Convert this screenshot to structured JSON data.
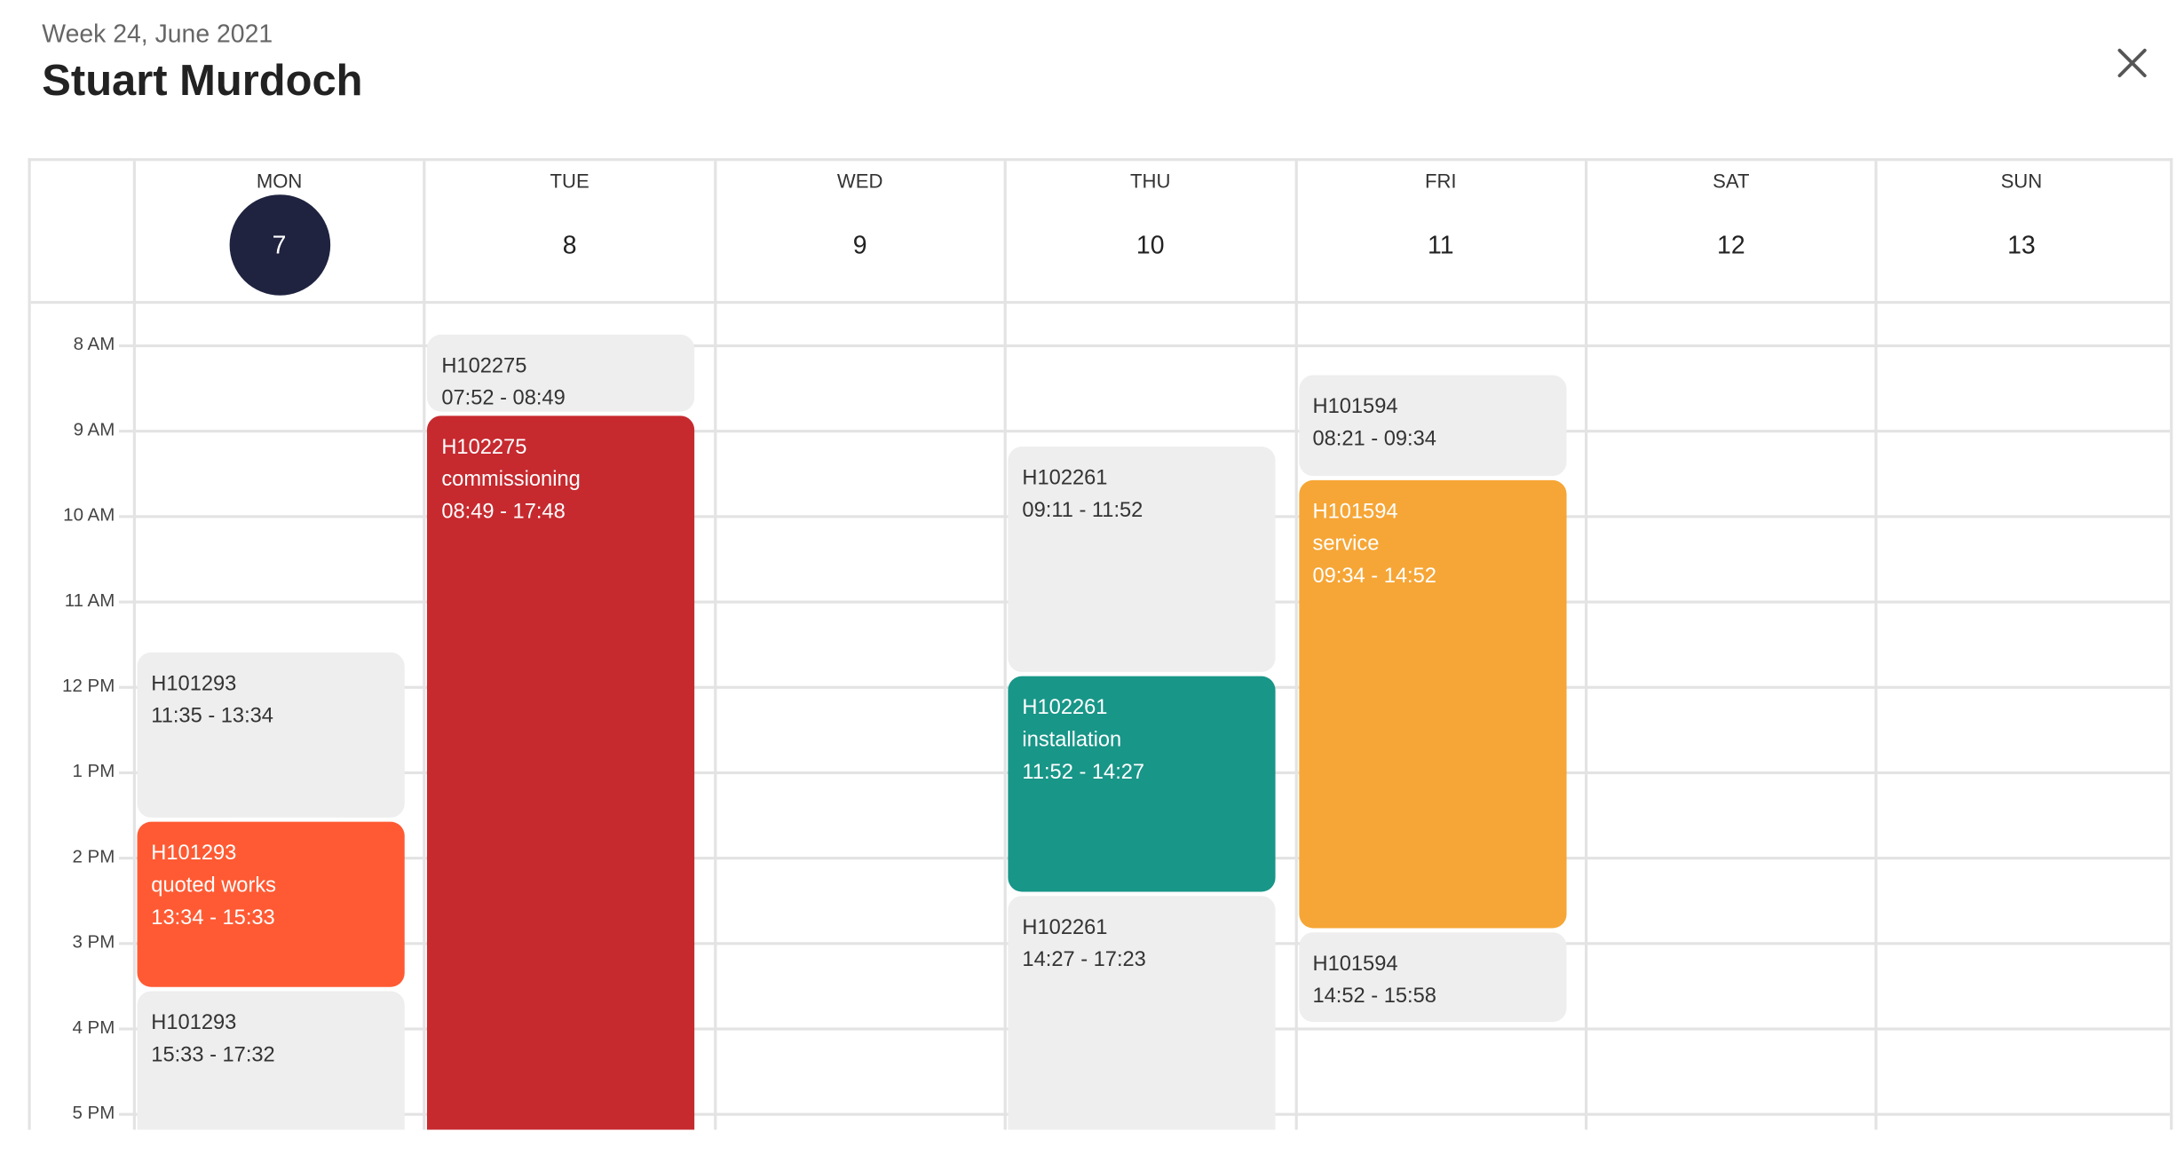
{
  "header": {
    "subtitle": "Week 24, June 2021",
    "title": "Stuart Murdoch",
    "close_icon": "close-icon"
  },
  "days": [
    {
      "name": "MON",
      "num": "7",
      "today": true
    },
    {
      "name": "TUE",
      "num": "8"
    },
    {
      "name": "WED",
      "num": "9"
    },
    {
      "name": "THU",
      "num": "10"
    },
    {
      "name": "FRI",
      "num": "11"
    },
    {
      "name": "SAT",
      "num": "12"
    },
    {
      "name": "SUN",
      "num": "13"
    }
  ],
  "hours": [
    "8 AM",
    "9 AM",
    "10 AM",
    "11 AM",
    "12 PM",
    "1 PM",
    "2 PM",
    "3 PM",
    "4 PM",
    "5 PM"
  ],
  "colors": {
    "today": "#1f2340",
    "grey": "#eeeeee",
    "red": "#c62a2f",
    "coral": "#ff5a33",
    "teal": "#189688",
    "orange": "#f6a636"
  },
  "events": [
    {
      "day": 0,
      "id": "H101293",
      "label": "",
      "start": "11:35",
      "end": "13:34",
      "time": "11:35 - 13:34",
      "color": "grey"
    },
    {
      "day": 0,
      "id": "H101293",
      "label": "quoted works",
      "start": "13:34",
      "end": "15:33",
      "time": "13:34 - 15:33",
      "color": "coral"
    },
    {
      "day": 0,
      "id": "H101293",
      "label": "",
      "start": "15:33",
      "end": "17:32",
      "time": "15:33 - 17:32",
      "color": "grey"
    },
    {
      "day": 1,
      "id": "H102275",
      "label": "",
      "start": "07:52",
      "end": "08:49",
      "time": "07:52 - 08:49",
      "color": "grey"
    },
    {
      "day": 1,
      "id": "H102275",
      "label": "commissioning",
      "start": "08:49",
      "end": "17:48",
      "time": "08:49 - 17:48",
      "color": "red"
    },
    {
      "day": 3,
      "id": "H102261",
      "label": "",
      "start": "09:11",
      "end": "11:52",
      "time": "09:11 - 11:52",
      "color": "grey"
    },
    {
      "day": 3,
      "id": "H102261",
      "label": "installation",
      "start": "11:52",
      "end": "14:27",
      "time": "11:52 - 14:27",
      "color": "teal"
    },
    {
      "day": 3,
      "id": "H102261",
      "label": "",
      "start": "14:27",
      "end": "17:23",
      "time": "14:27 - 17:23",
      "color": "grey"
    },
    {
      "day": 4,
      "id": "H101594",
      "label": "",
      "start": "08:21",
      "end": "09:34",
      "time": "08:21 - 09:34",
      "color": "grey"
    },
    {
      "day": 4,
      "id": "H101594",
      "label": "service",
      "start": "09:34",
      "end": "14:52",
      "time": "09:34 - 14:52",
      "color": "orange"
    },
    {
      "day": 4,
      "id": "H101594",
      "label": "",
      "start": "14:52",
      "end": "15:58",
      "time": "14:52 - 15:58",
      "color": "grey"
    }
  ]
}
